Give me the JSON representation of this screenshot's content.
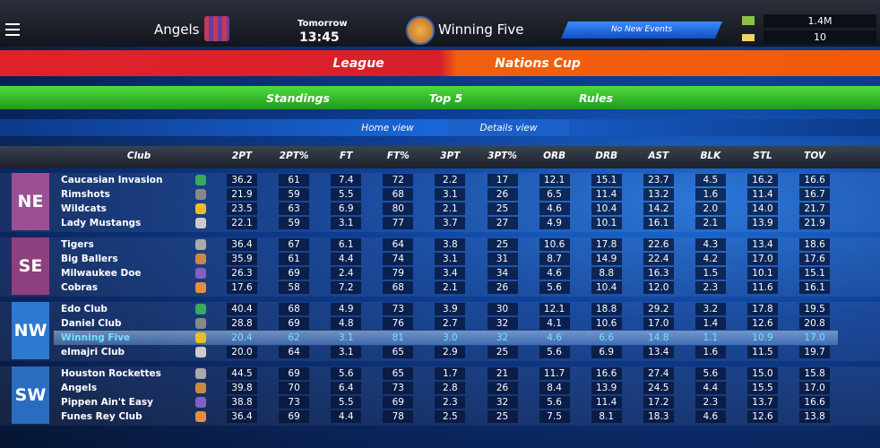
{
  "header": {
    "home_team": "Angels",
    "when": "Tomorrow",
    "time": "13:45",
    "away_team": "Winning Five",
    "events": "No New Events",
    "money": "1.4M",
    "credits": "10"
  },
  "tabs": {
    "main": [
      "League",
      "Nations Cup"
    ],
    "sub": [
      "Standings",
      "Top 5",
      "Rules"
    ],
    "views": [
      "Home view",
      "Details view"
    ]
  },
  "table": {
    "columns": [
      "Club",
      "2PT",
      "2PT%",
      "FT",
      "FT%",
      "3PT",
      "3PT%",
      "ORB",
      "DRB",
      "AST",
      "BLK",
      "STL",
      "TOV"
    ],
    "groups": [
      {
        "name": "NE",
        "color": "#9c4f95",
        "rows": [
          {
            "club": "Caucasian Invasion",
            "values": [
              "36.2",
              "61",
              "7.4",
              "72",
              "2.2",
              "17",
              "12.1",
              "15.1",
              "23.7",
              "4.5",
              "16.2",
              "16.6"
            ]
          },
          {
            "club": "Rimshots",
            "values": [
              "21.9",
              "59",
              "5.5",
              "68",
              "3.1",
              "26",
              "6.5",
              "11.4",
              "13.2",
              "1.6",
              "11.4",
              "16.7"
            ]
          },
          {
            "club": "Wildcats",
            "values": [
              "23.5",
              "63",
              "6.9",
              "80",
              "2.1",
              "25",
              "4.6",
              "10.4",
              "14.2",
              "2.0",
              "14.0",
              "21.7"
            ]
          },
          {
            "club": "Lady Mustangs",
            "values": [
              "22.1",
              "59",
              "3.1",
              "77",
              "3.7",
              "27",
              "4.9",
              "10.1",
              "16.1",
              "2.1",
              "13.9",
              "21.9"
            ]
          }
        ]
      },
      {
        "name": "SE",
        "color": "#8e3f7e",
        "rows": [
          {
            "club": "Tigers",
            "values": [
              "36.4",
              "67",
              "6.1",
              "64",
              "3.8",
              "25",
              "10.6",
              "17.8",
              "22.6",
              "4.3",
              "13.4",
              "18.6"
            ]
          },
          {
            "club": "Big Ballers",
            "values": [
              "35.9",
              "61",
              "4.4",
              "74",
              "3.1",
              "31",
              "8.7",
              "14.9",
              "22.4",
              "4.2",
              "17.0",
              "17.6"
            ]
          },
          {
            "club": "Milwaukee Doe",
            "values": [
              "26.3",
              "69",
              "2.4",
              "79",
              "3.4",
              "34",
              "4.6",
              "8.8",
              "16.3",
              "1.5",
              "10.1",
              "15.1"
            ]
          },
          {
            "club": "Cobras",
            "values": [
              "17.6",
              "58",
              "7.2",
              "68",
              "2.1",
              "26",
              "5.6",
              "10.4",
              "12.0",
              "2.3",
              "11.6",
              "16.1"
            ]
          }
        ]
      },
      {
        "name": "NW",
        "color": "#2f78cf",
        "rows": [
          {
            "club": "Edo Club",
            "values": [
              "40.4",
              "68",
              "4.9",
              "73",
              "3.9",
              "30",
              "12.1",
              "18.8",
              "29.2",
              "3.2",
              "17.8",
              "19.5"
            ]
          },
          {
            "club": "Daniel Club",
            "values": [
              "28.8",
              "69",
              "4.8",
              "76",
              "2.7",
              "32",
              "4.1",
              "10.6",
              "17.0",
              "1.4",
              "12.6",
              "20.8"
            ]
          },
          {
            "club": "Winning Five",
            "selected": true,
            "values": [
              "20.4",
              "62",
              "3.1",
              "81",
              "3.0",
              "32",
              "4.6",
              "6.6",
              "14.8",
              "1.1",
              "10.9",
              "17.0"
            ]
          },
          {
            "club": "elmajri Club",
            "values": [
              "20.0",
              "64",
              "3.1",
              "65",
              "2.9",
              "25",
              "5.6",
              "6.9",
              "13.4",
              "1.6",
              "11.5",
              "19.7"
            ]
          }
        ]
      },
      {
        "name": "SW",
        "color": "#2a6cc0",
        "rows": [
          {
            "club": "Houston Rockettes",
            "values": [
              "44.5",
              "69",
              "5.6",
              "65",
              "1.7",
              "21",
              "11.7",
              "16.6",
              "27.4",
              "5.6",
              "15.0",
              "15.8"
            ]
          },
          {
            "club": "Angels",
            "values": [
              "39.8",
              "70",
              "6.4",
              "73",
              "2.8",
              "26",
              "8.4",
              "13.9",
              "24.5",
              "4.4",
              "15.5",
              "17.0"
            ]
          },
          {
            "club": "Pippen Ain't Easy",
            "values": [
              "38.8",
              "73",
              "5.5",
              "69",
              "2.3",
              "32",
              "5.6",
              "11.4",
              "17.2",
              "2.3",
              "13.7",
              "16.6"
            ]
          },
          {
            "club": "Funes Rey Club",
            "values": [
              "36.4",
              "69",
              "4.4",
              "78",
              "2.5",
              "25",
              "7.5",
              "8.1",
              "18.3",
              "4.6",
              "12.6",
              "13.8"
            ]
          }
        ]
      }
    ]
  }
}
